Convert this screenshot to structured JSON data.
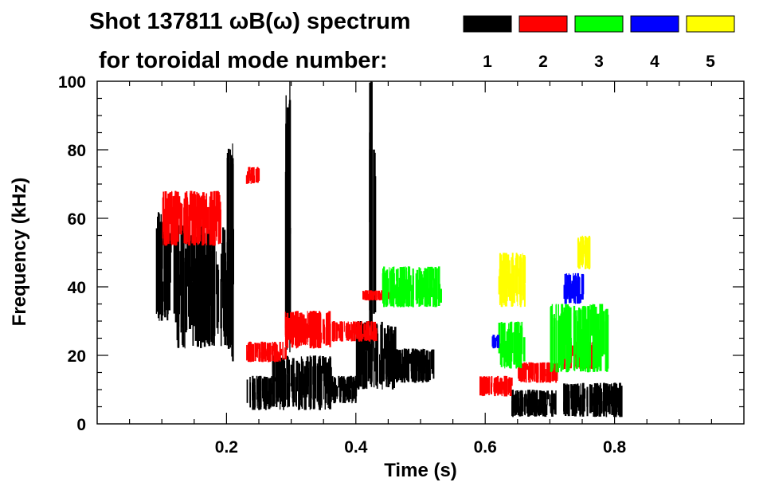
{
  "chart_data": {
    "type": "spectrogram",
    "title_line1": "Shot 137811 ωB(ω) spectrum",
    "title_line2": "for toroidal mode number:",
    "xlabel": "Time (s)",
    "ylabel": "Frequency (kHz)",
    "xlim": [
      0.0,
      1.0
    ],
    "ylim": [
      0,
      100
    ],
    "x_ticks": [
      0.2,
      0.4,
      0.6,
      0.8
    ],
    "x_tick_labels": [
      "0.2",
      "0.4",
      "0.6",
      "0.8"
    ],
    "y_ticks": [
      0,
      20,
      40,
      60,
      80,
      100
    ],
    "y_tick_labels": [
      "0",
      "20",
      "40",
      "60",
      "80",
      "100"
    ],
    "legend": [
      {
        "label": "1",
        "color": "#000000"
      },
      {
        "label": "2",
        "color": "#ff0000"
      },
      {
        "label": "3",
        "color": "#00ff00"
      },
      {
        "label": "4",
        "color": "#0000ff"
      },
      {
        "label": "5",
        "color": "#ffff00"
      }
    ],
    "features": [
      {
        "mode": 1,
        "t": [
          0.09,
          0.12
        ],
        "f": [
          30,
          62
        ]
      },
      {
        "mode": 1,
        "t": [
          0.12,
          0.21
        ],
        "f": [
          22,
          58
        ]
      },
      {
        "mode": 1,
        "t": [
          0.23,
          0.27
        ],
        "f": [
          4,
          14
        ]
      },
      {
        "mode": 1,
        "t": [
          0.27,
          0.36
        ],
        "f": [
          4,
          20
        ]
      },
      {
        "mode": 1,
        "t": [
          0.36,
          0.4
        ],
        "f": [
          6,
          14
        ]
      },
      {
        "mode": 1,
        "t": [
          0.4,
          0.46
        ],
        "f": [
          10,
          30
        ]
      },
      {
        "mode": 1,
        "t": [
          0.46,
          0.52
        ],
        "f": [
          12,
          22
        ]
      },
      {
        "mode": 1,
        "t": [
          0.64,
          0.71
        ],
        "f": [
          2,
          10
        ]
      },
      {
        "mode": 1,
        "t": [
          0.72,
          0.81
        ],
        "f": [
          2,
          12
        ]
      },
      {
        "mode": 1,
        "t": [
          0.2,
          0.21
        ],
        "f": [
          18,
          84
        ]
      },
      {
        "mode": 1,
        "t": [
          0.29,
          0.3
        ],
        "f": [
          20,
          100
        ]
      },
      {
        "mode": 1,
        "t": [
          0.42,
          0.43
        ],
        "f": [
          28,
          100
        ]
      },
      {
        "mode": 2,
        "t": [
          0.1,
          0.19
        ],
        "f": [
          52,
          68
        ]
      },
      {
        "mode": 2,
        "t": [
          0.23,
          0.25
        ],
        "f": [
          70,
          75
        ]
      },
      {
        "mode": 2,
        "t": [
          0.23,
          0.29
        ],
        "f": [
          18,
          24
        ]
      },
      {
        "mode": 2,
        "t": [
          0.29,
          0.36
        ],
        "f": [
          22,
          33
        ]
      },
      {
        "mode": 2,
        "t": [
          0.36,
          0.43
        ],
        "f": [
          24,
          30
        ]
      },
      {
        "mode": 2,
        "t": [
          0.41,
          0.46
        ],
        "f": [
          36,
          39
        ]
      },
      {
        "mode": 2,
        "t": [
          0.59,
          0.64
        ],
        "f": [
          8,
          14
        ]
      },
      {
        "mode": 2,
        "t": [
          0.65,
          0.71
        ],
        "f": [
          12,
          18
        ]
      },
      {
        "mode": 2,
        "t": [
          0.71,
          0.77
        ],
        "f": [
          16,
          24
        ]
      },
      {
        "mode": 3,
        "t": [
          0.62,
          0.66
        ],
        "f": [
          16,
          30
        ]
      },
      {
        "mode": 3,
        "t": [
          0.7,
          0.79
        ],
        "f": [
          15,
          35
        ]
      },
      {
        "mode": 3,
        "t": [
          0.44,
          0.53
        ],
        "f": [
          34,
          46
        ]
      },
      {
        "mode": 4,
        "t": [
          0.72,
          0.75
        ],
        "f": [
          35,
          44
        ]
      },
      {
        "mode": 4,
        "t": [
          0.61,
          0.62
        ],
        "f": [
          22,
          26
        ]
      },
      {
        "mode": 5,
        "t": [
          0.62,
          0.66
        ],
        "f": [
          34,
          50
        ]
      },
      {
        "mode": 5,
        "t": [
          0.74,
          0.76
        ],
        "f": [
          45,
          55
        ]
      }
    ]
  }
}
